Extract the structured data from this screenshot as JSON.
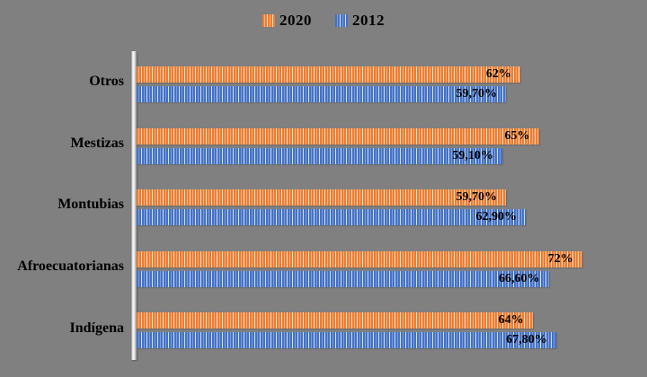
{
  "background_color": "#808080",
  "legend": {
    "items": [
      {
        "label": "2020",
        "color": "#ED7D31"
      },
      {
        "label": "2012",
        "color": "#4472C4"
      }
    ]
  },
  "chart_data": {
    "type": "bar",
    "orientation": "horizontal",
    "title": "",
    "categories": [
      "Otros",
      "Mestizas",
      "Montubias",
      "Afroecuatorianas",
      "Indígena"
    ],
    "series": [
      {
        "name": "2020",
        "color": "#ED7D31",
        "pattern": "vertical-stripes",
        "values": [
          62,
          65,
          59.7,
          72,
          64
        ],
        "labels": [
          "62%",
          "65%",
          "59,70%",
          "72%",
          "64%"
        ]
      },
      {
        "name": "2012",
        "color": "#4472C4",
        "pattern": "vertical-stripes",
        "values": [
          59.7,
          59.1,
          62.9,
          66.6,
          67.8
        ],
        "labels": [
          "59,70%",
          "59,10%",
          "62,90%",
          "66,60%",
          "67,80%"
        ]
      }
    ],
    "xlim": [
      0,
      82.5
    ],
    "grid": false,
    "legend_position": "top",
    "value_label_position": "inside-end",
    "value_label_decimal_separator": ","
  }
}
